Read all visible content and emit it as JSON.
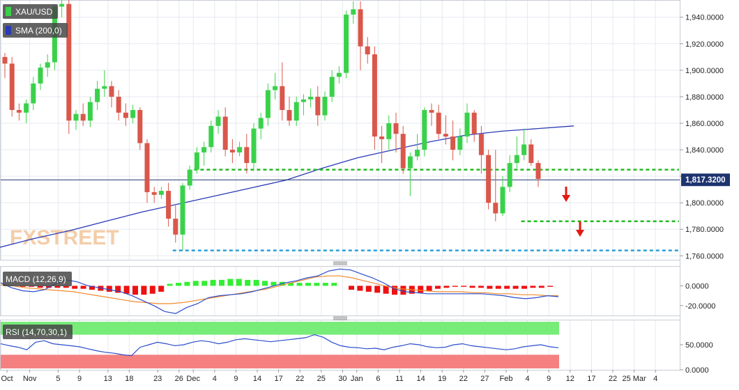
{
  "colors": {
    "up": "#3ad14a",
    "down": "#d9574b",
    "sma": "#2a3ab5",
    "price_line": "#1e3470",
    "green_level": "#22bb22",
    "blue_level": "#2a9fd8",
    "arrow": "#e21b12",
    "macd_line": "#2a4dcc",
    "signal_line": "#f08a2c",
    "rsi_line": "#2a4dcc",
    "rsi_upper_zone": "#78ec78",
    "rsi_lower_zone": "#f48080"
  },
  "panels": {
    "price_label": "XAU/USD",
    "sma_label": "SMA (200,0)",
    "macd_label": "MACD (12,26,9)",
    "rsi_label": "RSI (14,70,30,1)",
    "watermark": "FXSTREET",
    "current_price": "1,817.3200"
  },
  "icons": {
    "macd_resize_handle": "grip-lines-icon",
    "rsi_resize_handle": "grip-lines-icon",
    "down_arrow": "arrow-down-icon"
  },
  "chart_data": [
    {
      "type": "candlestick",
      "xlabels": [
        "Oct",
        "Nov",
        "5",
        "9",
        "13",
        "18",
        "23",
        "26",
        "Dec",
        "4",
        "9",
        "14",
        "17",
        "22",
        "25",
        "30",
        "Jan",
        "6",
        "11",
        "14",
        "19",
        "22",
        "27",
        "Feb",
        "4",
        "9",
        "12",
        "17",
        "22",
        "25 Mar",
        "4"
      ],
      "xlabel_index": [
        -1,
        3,
        7,
        10,
        14,
        17,
        21,
        24,
        26,
        29,
        32,
        35,
        38,
        41,
        44,
        47,
        49,
        52,
        55,
        58,
        61,
        64,
        67,
        70,
        73,
        76,
        79,
        82,
        85,
        88,
        91
      ],
      "yticks": [
        "1,760.0000",
        "1,780.0000",
        "1,800.0000",
        "1,820.0000",
        "1,840.0000",
        "1,860.0000",
        "1,880.0000",
        "1,900.0000",
        "1,920.0000",
        "1,940.0000"
      ],
      "ylim": [
        1757,
        1953
      ],
      "levels": [
        {
          "name": "resistance-support",
          "value": 1825,
          "color": "green",
          "from_index": 27
        },
        {
          "name": "february-low",
          "value": 1786,
          "color": "green",
          "from_index": 73
        },
        {
          "name": "november-low",
          "value": 1764,
          "color": "blue",
          "from_index": 24
        }
      ],
      "current_price": 1817.32,
      "ohlc": [
        [
          1910,
          1913,
          1894,
          1905
        ],
        [
          1905,
          1910,
          1865,
          1870
        ],
        [
          1870,
          1875,
          1862,
          1868
        ],
        [
          1868,
          1878,
          1860,
          1875
        ],
        [
          1875,
          1895,
          1870,
          1890
        ],
        [
          1890,
          1905,
          1885,
          1902
        ],
        [
          1902,
          1912,
          1895,
          1906
        ],
        [
          1906,
          1950,
          1900,
          1948
        ],
        [
          1948,
          1953,
          1940,
          1950
        ],
        [
          1950,
          1953,
          1852,
          1862
        ],
        [
          1862,
          1870,
          1855,
          1867
        ],
        [
          1867,
          1875,
          1858,
          1862
        ],
        [
          1862,
          1880,
          1857,
          1876
        ],
        [
          1876,
          1892,
          1870,
          1886
        ],
        [
          1886,
          1900,
          1880,
          1888
        ],
        [
          1888,
          1892,
          1872,
          1880
        ],
        [
          1880,
          1885,
          1862,
          1868
        ],
        [
          1868,
          1875,
          1858,
          1864
        ],
        [
          1864,
          1874,
          1860,
          1870
        ],
        [
          1870,
          1872,
          1840,
          1845
        ],
        [
          1845,
          1848,
          1800,
          1808
        ],
        [
          1808,
          1812,
          1800,
          1806
        ],
        [
          1806,
          1812,
          1803,
          1809
        ],
        [
          1809,
          1815,
          1782,
          1788
        ],
        [
          1788,
          1798,
          1770,
          1776
        ],
        [
          1776,
          1815,
          1764,
          1813
        ],
        [
          1813,
          1828,
          1810,
          1825
        ],
        [
          1825,
          1842,
          1822,
          1838
        ],
        [
          1838,
          1846,
          1828,
          1842
        ],
        [
          1842,
          1862,
          1838,
          1858
        ],
        [
          1858,
          1870,
          1852,
          1865
        ],
        [
          1865,
          1872,
          1835,
          1840
        ],
        [
          1840,
          1848,
          1830,
          1838
        ],
        [
          1838,
          1846,
          1835,
          1842
        ],
        [
          1842,
          1852,
          1822,
          1830
        ],
        [
          1830,
          1860,
          1824,
          1856
        ],
        [
          1856,
          1868,
          1848,
          1864
        ],
        [
          1864,
          1890,
          1858,
          1885
        ],
        [
          1885,
          1898,
          1878,
          1888
        ],
        [
          1888,
          1906,
          1862,
          1870
        ],
        [
          1870,
          1880,
          1858,
          1862
        ],
        [
          1862,
          1880,
          1858,
          1876
        ],
        [
          1876,
          1882,
          1866,
          1878
        ],
        [
          1878,
          1886,
          1872,
          1880
        ],
        [
          1880,
          1888,
          1858,
          1866
        ],
        [
          1866,
          1884,
          1862,
          1880
        ],
        [
          1880,
          1900,
          1876,
          1895
        ],
        [
          1895,
          1903,
          1890,
          1898
        ],
        [
          1898,
          1945,
          1894,
          1942
        ],
        [
          1942,
          1952,
          1935,
          1946
        ],
        [
          1946,
          1952,
          1900,
          1918
        ],
        [
          1918,
          1925,
          1905,
          1912
        ],
        [
          1912,
          1918,
          1840,
          1850
        ],
        [
          1850,
          1858,
          1830,
          1848
        ],
        [
          1848,
          1866,
          1840,
          1860
        ],
        [
          1860,
          1868,
          1838,
          1852
        ],
        [
          1852,
          1858,
          1822,
          1826
        ],
        [
          1826,
          1838,
          1805,
          1835
        ],
        [
          1835,
          1852,
          1832,
          1840
        ],
        [
          1840,
          1872,
          1835,
          1870
        ],
        [
          1870,
          1875,
          1858,
          1868
        ],
        [
          1868,
          1874,
          1848,
          1852
        ],
        [
          1852,
          1866,
          1844,
          1850
        ],
        [
          1850,
          1862,
          1832,
          1840
        ],
        [
          1840,
          1856,
          1836,
          1850
        ],
        [
          1850,
          1875,
          1845,
          1868
        ],
        [
          1868,
          1870,
          1846,
          1852
        ],
        [
          1852,
          1858,
          1822,
          1836
        ],
        [
          1836,
          1840,
          1795,
          1800
        ],
        [
          1800,
          1840,
          1786,
          1792
        ],
        [
          1792,
          1820,
          1790,
          1812
        ],
        [
          1812,
          1836,
          1808,
          1830
        ],
        [
          1830,
          1850,
          1826,
          1836
        ],
        [
          1836,
          1856,
          1832,
          1844
        ],
        [
          1844,
          1848,
          1828,
          1830
        ],
        [
          1830,
          1832,
          1812,
          1818
        ]
      ],
      "sma": [
        1766,
        1773,
        1779,
        1786,
        1793,
        1799,
        1805,
        1811,
        1817,
        1826,
        1834,
        1840,
        1846,
        1851,
        1854,
        1856,
        1858
      ],
      "sma_span": [
        -1,
        80
      ]
    },
    {
      "type": "macd",
      "title": "MACD (12,26,9)",
      "yticks": [
        "0.0000",
        "-20.0000"
      ],
      "ylim": [
        -30,
        20
      ],
      "histogram": [
        0,
        0,
        -1,
        -1,
        -2,
        -2,
        -2,
        -2,
        -3,
        -3,
        -4,
        -5,
        -6,
        -7,
        -8,
        -9,
        -9,
        -8,
        -6,
        2,
        3,
        4,
        5,
        5,
        6,
        6,
        7,
        7,
        6,
        6,
        5,
        4,
        4,
        3,
        3,
        3,
        3,
        3,
        3,
        0,
        -4,
        -5,
        -6,
        -7,
        -8,
        -9,
        -9,
        -8,
        -7,
        -5,
        -3,
        -2,
        -1,
        -1,
        -2,
        -2,
        -3,
        -3,
        -3,
        -3,
        -3,
        -2,
        -2,
        -1
      ],
      "macd_line": [
        3,
        -2,
        -5,
        -6,
        -4,
        2,
        6,
        4,
        0,
        -2,
        -4,
        -6,
        -10,
        -15,
        -20,
        -26,
        -28,
        -22,
        -18,
        -12,
        -10,
        -9,
        -8,
        -6,
        -3,
        0,
        3,
        5,
        8,
        10,
        15,
        17,
        16,
        12,
        8,
        3,
        -3,
        -6,
        -7,
        -8,
        -8,
        -8,
        -8,
        -8,
        -8,
        -9,
        -10,
        -12,
        -13,
        -12,
        -10,
        -11
      ],
      "signal_line": [
        1,
        0,
        -2,
        -3,
        -4,
        -5,
        -6,
        -8,
        -10,
        -12,
        -14,
        -16,
        -17,
        -18,
        -18,
        -17,
        -15,
        -13,
        -11,
        -9,
        -7,
        -5,
        -3,
        0,
        3,
        6,
        9,
        10,
        10,
        8,
        5,
        2,
        -1,
        -3,
        -4,
        -5,
        -6,
        -6,
        -6,
        -7,
        -7,
        -8,
        -8,
        -9,
        -9,
        -10,
        -10
      ]
    },
    {
      "type": "rsi",
      "title": "RSI (14,70,30,1)",
      "yticks": [
        "50.0000",
        "0.0000"
      ],
      "ylim": [
        0,
        100
      ],
      "upper": 70,
      "lower": 30,
      "values": [
        52,
        48,
        45,
        40,
        55,
        58,
        52,
        50,
        48,
        46,
        42,
        38,
        35,
        33,
        30,
        28,
        45,
        50,
        55,
        52,
        48,
        50,
        55,
        58,
        56,
        52,
        55,
        60,
        62,
        60,
        58,
        56,
        58,
        60,
        62,
        64,
        70,
        65,
        55,
        48,
        45,
        44,
        42,
        43,
        40,
        45,
        48,
        52,
        50,
        46,
        44,
        45,
        50,
        52,
        48,
        46,
        44,
        42,
        40,
        42,
        46,
        48,
        50,
        46,
        44
      ]
    }
  ]
}
